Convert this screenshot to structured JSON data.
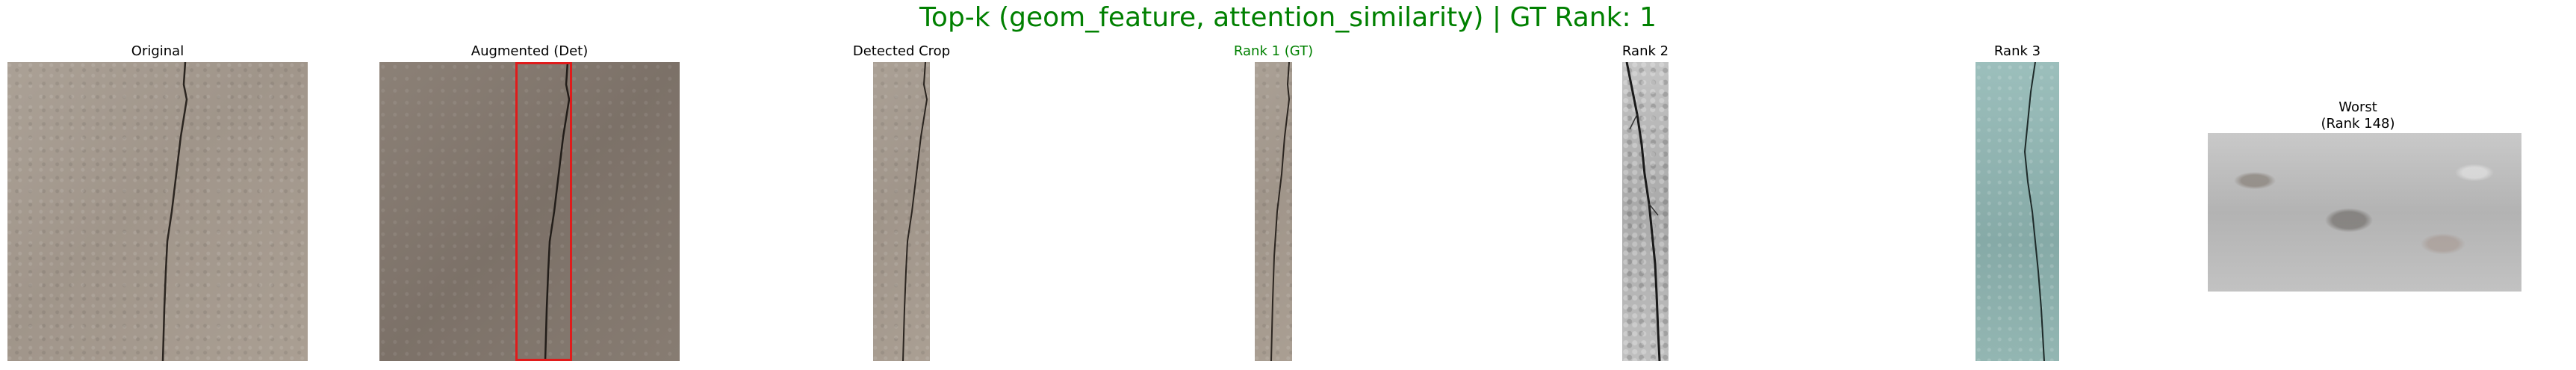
{
  "figure": {
    "suptitle": "Top-k (geom_feature, attention_similarity) | GT Rank: 1",
    "suptitle_color": "#008000",
    "panels": [
      {
        "title": "Original",
        "title_color": "#000000"
      },
      {
        "title": "Augmented (Det)",
        "title_color": "#000000",
        "box_color": "#e01b1b"
      },
      {
        "title": "Detected Crop",
        "title_color": "#000000"
      },
      {
        "title": "Rank 1 (GT)",
        "title_color": "#008000"
      },
      {
        "title": "Rank 2",
        "title_color": "#000000"
      },
      {
        "title": "Rank 3",
        "title_color": "#000000"
      },
      {
        "title_line1": "Worst",
        "title_line2": "(Rank 148)",
        "title_color": "#000000"
      }
    ]
  }
}
